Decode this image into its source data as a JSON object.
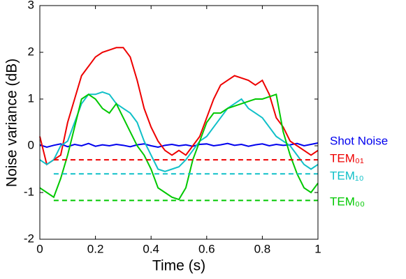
{
  "chart_data": {
    "type": "line",
    "xlabel": "Time (s)",
    "ylabel": "Noise variance (dB)",
    "xlim": [
      0,
      1
    ],
    "ylim": [
      -2,
      3
    ],
    "xticks": [
      0,
      0.2,
      0.4,
      0.6,
      0.8,
      1
    ],
    "yticks": [
      -2,
      -1,
      0,
      1,
      2,
      3
    ],
    "x": [
      0,
      0.025,
      0.05,
      0.075,
      0.1,
      0.125,
      0.15,
      0.175,
      0.2,
      0.225,
      0.25,
      0.275,
      0.3,
      0.325,
      0.35,
      0.375,
      0.4,
      0.425,
      0.45,
      0.475,
      0.5,
      0.525,
      0.55,
      0.575,
      0.6,
      0.625,
      0.65,
      0.675,
      0.7,
      0.725,
      0.75,
      0.775,
      0.8,
      0.825,
      0.85,
      0.875,
      0.9,
      0.925,
      0.95,
      0.975,
      1
    ],
    "series": [
      {
        "name": "Shot Noise",
        "color": "#0000ee",
        "values": [
          0.02,
          -0.03,
          0.01,
          0.04,
          -0.02,
          0.03,
          0.0,
          0.05,
          -0.01,
          0.02,
          0.0,
          0.03,
          0.01,
          -0.02,
          0.02,
          0.04,
          0.0,
          -0.03,
          0.01,
          0.03,
          0.0,
          0.02,
          -0.01,
          0.03,
          0.04,
          0.0,
          0.02,
          0.05,
          0.01,
          0.03,
          -0.01,
          0.02,
          0.04,
          0.0,
          0.03,
          0.01,
          0.02,
          0.05,
          0.0,
          0.03,
          0.06
        ]
      },
      {
        "name": "TEM₀₁",
        "color": "#ee0000",
        "values": [
          0.2,
          -0.4,
          -0.3,
          -0.2,
          0.5,
          1.0,
          1.5,
          1.7,
          1.9,
          2.0,
          2.05,
          2.1,
          2.1,
          1.9,
          1.4,
          0.8,
          0.4,
          0.1,
          -0.1,
          -0.2,
          -0.1,
          -0.2,
          0.0,
          0.2,
          0.6,
          1.0,
          1.3,
          1.4,
          1.5,
          1.45,
          1.4,
          1.3,
          1.4,
          1.1,
          0.6,
          0.4,
          0.1,
          0.0,
          -0.1,
          -0.2,
          -0.1
        ]
      },
      {
        "name": "TEM₁₀",
        "color": "#10c0c8",
        "values": [
          -0.3,
          -0.4,
          -0.3,
          0.0,
          0.1,
          0.5,
          0.9,
          1.1,
          1.1,
          1.15,
          1.1,
          0.9,
          0.8,
          0.7,
          0.5,
          0.1,
          -0.2,
          -0.5,
          -0.55,
          -0.5,
          -0.45,
          -0.3,
          -0.1,
          0.1,
          0.2,
          0.4,
          0.6,
          0.8,
          0.9,
          1.0,
          0.8,
          0.7,
          0.6,
          0.4,
          0.2,
          0.1,
          0.0,
          -0.2,
          -0.4,
          -0.5,
          -0.4
        ]
      },
      {
        "name": "TEM₀₀",
        "color": "#00c800",
        "values": [
          -0.9,
          -1.0,
          -1.1,
          -0.7,
          -0.2,
          0.4,
          1.0,
          1.1,
          1.0,
          0.8,
          0.7,
          0.9,
          0.6,
          0.3,
          0.0,
          -0.2,
          -0.5,
          -0.9,
          -1.0,
          -1.1,
          -1.15,
          -0.9,
          -0.3,
          0.1,
          0.5,
          0.7,
          0.7,
          0.8,
          0.85,
          0.9,
          0.95,
          1.0,
          1.0,
          1.05,
          1.1,
          0.3,
          -0.2,
          -0.6,
          -0.9,
          -1.0,
          -0.8
        ]
      },
      {
        "color": "#ee0000",
        "dash": true,
        "x": [
          0.05,
          1
        ],
        "values": [
          -0.3,
          -0.3
        ]
      },
      {
        "color": "#10c0c8",
        "dash": true,
        "x": [
          0.05,
          1
        ],
        "values": [
          -0.6,
          -0.6
        ]
      },
      {
        "color": "#00c800",
        "dash": true,
        "x": [
          0.05,
          1
        ],
        "values": [
          -1.17,
          -1.17
        ]
      }
    ]
  }
}
